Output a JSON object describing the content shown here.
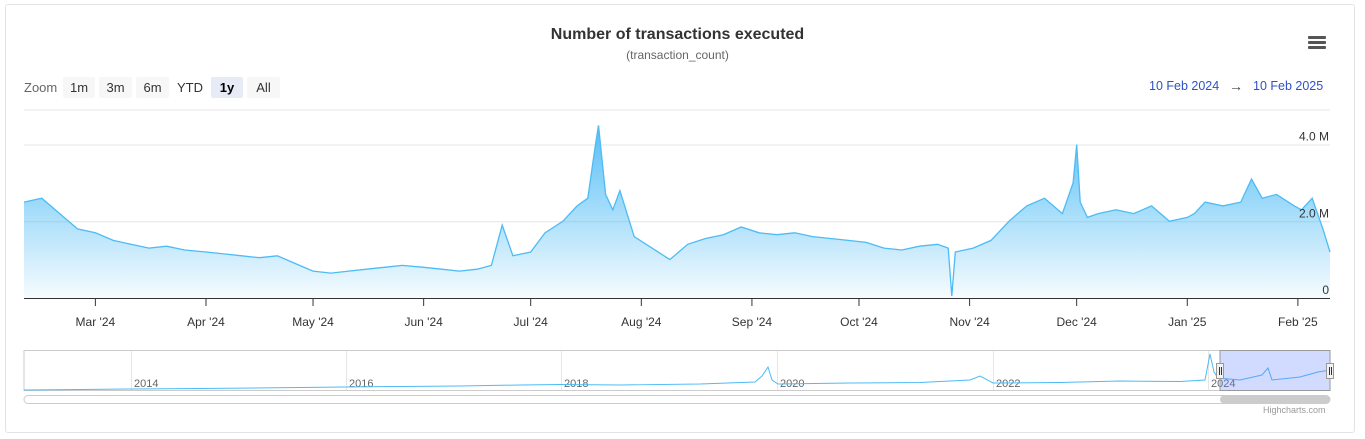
{
  "chart_data": {
    "type": "area",
    "title": "Number of transactions executed",
    "subtitle": "(transaction_count)",
    "y_tick_labels": [
      "0",
      "2.0 M",
      "4.0 M"
    ],
    "y_ticks": [
      0,
      2000000,
      4000000
    ],
    "ylim": [
      0,
      4900000
    ],
    "x_tick_labels": [
      "Mar '24",
      "Apr '24",
      "May '24",
      "Jun '24",
      "Jul '24",
      "Aug '24",
      "Sep '24",
      "Oct '24",
      "Nov '24",
      "Dec '24",
      "Jan '25",
      "Feb '25"
    ],
    "x_tick_dates": [
      "2024-03-01",
      "2024-04-01",
      "2024-05-01",
      "2024-06-01",
      "2024-07-01",
      "2024-08-01",
      "2024-09-01",
      "2024-10-01",
      "2024-11-01",
      "2024-12-01",
      "2025-01-01",
      "2025-02-01"
    ],
    "xlim": [
      "2024-02-10",
      "2025-02-10"
    ],
    "series": [
      {
        "x": [
          "2024-02-10",
          "2024-02-15",
          "2024-02-20",
          "2024-02-25",
          "2024-03-01",
          "2024-03-06",
          "2024-03-11",
          "2024-03-16",
          "2024-03-21",
          "2024-03-26",
          "2024-04-01",
          "2024-04-06",
          "2024-04-11",
          "2024-04-16",
          "2024-04-21",
          "2024-04-26",
          "2024-05-01",
          "2024-05-06",
          "2024-05-11",
          "2024-05-16",
          "2024-05-21",
          "2024-05-26",
          "2024-06-01",
          "2024-06-06",
          "2024-06-11",
          "2024-06-16",
          "2024-06-20",
          "2024-06-23",
          "2024-06-26",
          "2024-07-01",
          "2024-07-05",
          "2024-07-10",
          "2024-07-14",
          "2024-07-17",
          "2024-07-19",
          "2024-07-20",
          "2024-07-22",
          "2024-07-24",
          "2024-07-26",
          "2024-07-30",
          "2024-08-04",
          "2024-08-09",
          "2024-08-14",
          "2024-08-19",
          "2024-08-24",
          "2024-08-29",
          "2024-09-03",
          "2024-09-08",
          "2024-09-13",
          "2024-09-18",
          "2024-09-23",
          "2024-09-28",
          "2024-10-03",
          "2024-10-08",
          "2024-10-13",
          "2024-10-18",
          "2024-10-23",
          "2024-10-26",
          "2024-10-27",
          "2024-10-28",
          "2024-11-02",
          "2024-11-07",
          "2024-11-12",
          "2024-11-17",
          "2024-11-22",
          "2024-11-27",
          "2024-11-30",
          "2024-12-01",
          "2024-12-02",
          "2024-12-04",
          "2024-12-07",
          "2024-12-12",
          "2024-12-17",
          "2024-12-22",
          "2024-12-27",
          "2025-01-01",
          "2025-01-03",
          "2025-01-06",
          "2025-01-11",
          "2025-01-16",
          "2025-01-19",
          "2025-01-22",
          "2025-01-26",
          "2025-01-31",
          "2025-02-02",
          "2025-02-05",
          "2025-02-08",
          "2025-02-10"
        ],
        "values": [
          2500000,
          2600000,
          2200000,
          1800000,
          1700000,
          1500000,
          1400000,
          1300000,
          1350000,
          1250000,
          1200000,
          1150000,
          1100000,
          1050000,
          1100000,
          900000,
          700000,
          650000,
          700000,
          750000,
          800000,
          850000,
          800000,
          750000,
          700000,
          750000,
          850000,
          1900000,
          1100000,
          1200000,
          1700000,
          2000000,
          2400000,
          2600000,
          3900000,
          4500000,
          2700000,
          2300000,
          2800000,
          1600000,
          1300000,
          1000000,
          1400000,
          1550000,
          1650000,
          1850000,
          1700000,
          1650000,
          1700000,
          1600000,
          1550000,
          1500000,
          1450000,
          1300000,
          1250000,
          1350000,
          1400000,
          1300000,
          50000,
          1200000,
          1300000,
          1500000,
          2000000,
          2400000,
          2600000,
          2200000,
          3000000,
          4000000,
          2500000,
          2100000,
          2200000,
          2300000,
          2200000,
          2400000,
          2000000,
          2100000,
          2200000,
          2500000,
          2400000,
          2500000,
          3100000,
          2600000,
          2700000,
          2400000,
          2300000,
          2600000,
          1800000,
          1200000
        ],
        "color": "#4dbbf5"
      }
    ],
    "navigator_tick_labels": [
      "2014",
      "2016",
      "2018",
      "2020",
      "2022",
      "2024"
    ]
  },
  "ui": {
    "zoom_label": "Zoom",
    "zoom_buttons": [
      "1m",
      "3m",
      "6m",
      "YTD",
      "1y",
      "All"
    ],
    "active_zoom": "1y",
    "range_from": "10 Feb 2024",
    "range_arrow": "→",
    "range_to": "10 Feb 2025",
    "credits": "Highcharts.com"
  }
}
